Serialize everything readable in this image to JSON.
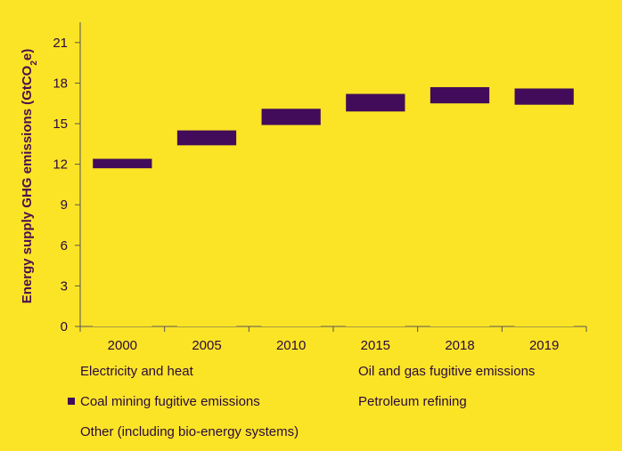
{
  "chart_data": {
    "type": "bar",
    "subtype": "floating",
    "ylabel_prefix": "Energy supply GHG emissions (GtCO",
    "ylabel_sub": "2",
    "ylabel_suffix": "e)",
    "categories": [
      "2000",
      "2005",
      "2010",
      "2015",
      "2018",
      "2019"
    ],
    "yticks": [
      "0",
      "3",
      "6",
      "9",
      "12",
      "15",
      "18",
      "21"
    ],
    "ylim": [
      0,
      22.5
    ],
    "grid": false,
    "series": [
      {
        "name": "Electricity and heat",
        "color": "#fbe426",
        "low": [
          0,
          0,
          0,
          0,
          0,
          0
        ],
        "high": [
          11.7,
          13.4,
          14.9,
          15.9,
          16.5,
          16.4
        ]
      },
      {
        "name": "Coal mining fugitive emissions",
        "color": "#420c5a",
        "low": [
          11.7,
          13.4,
          14.9,
          15.9,
          16.5,
          16.4
        ],
        "high": [
          12.4,
          14.5,
          16.1,
          17.2,
          17.7,
          17.6
        ]
      }
    ],
    "legend": [
      {
        "label": "Electricity and heat",
        "swatch": false
      },
      {
        "label": "Oil and gas fugitive emissions",
        "swatch": false
      },
      {
        "label": "Coal mining fugitive emissions",
        "swatch": true
      },
      {
        "label": "Petroleum refining",
        "swatch": false
      },
      {
        "label": "Other (including bio-energy systems)",
        "swatch": false
      }
    ],
    "legend_placement": "bottom"
  }
}
